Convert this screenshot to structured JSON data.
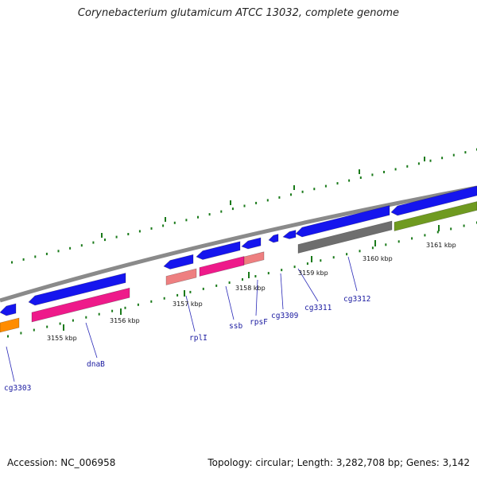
{
  "title": "Corynebacterium glutamicum ATCC 13032, complete genome",
  "footer": {
    "accession_text": "Accession: NC_006958",
    "summary_text": "Topology: circular; Length: 3,282,708 bp; Genes: 3,142"
  },
  "colors": {
    "backbone": "#8a8a8a",
    "blue": "#1515ee",
    "magenta": "#ee1a8a",
    "pink": "#ee7f80",
    "gray": "#6e6e6e",
    "olive": "#6f9a20",
    "orange": "#ff8c00",
    "tick": "#1a7a1a",
    "label": "#1a1aa0",
    "leader": "#2a2ab8"
  },
  "scale_labels": [
    "3155 kbp",
    "3156 kbp",
    "3157 kbp",
    "3158 kbp",
    "3159 kbp",
    "3160 kbp",
    "3161 kbp"
  ],
  "gene_labels": [
    "cg3303",
    "dnaB",
    "rplI",
    "ssb",
    "rpsF",
    "cg3309",
    "cg3311",
    "cg3312"
  ]
}
